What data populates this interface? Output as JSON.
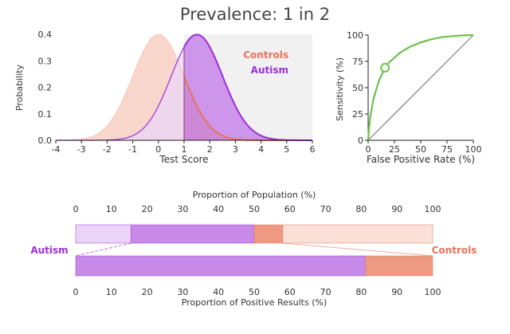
{
  "title": "Prevalence: 1 in 2",
  "colors": {
    "controls": "#e8745a",
    "controls_fill": "#f7c8bb",
    "controls_light": "#fbe0d8",
    "autism": "#9b30d9",
    "autism_fill": "#c88ae8",
    "autism_light": "#ead5f8",
    "roc": "#6cc24a",
    "axis": "#222222"
  },
  "chart_data": [
    {
      "type": "area",
      "title": "",
      "xlabel": "Test Score",
      "ylabel": "Probability",
      "xlim": [
        -4,
        6
      ],
      "ylim": [
        0,
        0.4
      ],
      "x_ticks": [
        "-4",
        "-3",
        "-2",
        "-1",
        "0",
        "1",
        "2",
        "3",
        "4",
        "5",
        "6"
      ],
      "y_ticks": [
        "0.0",
        "0.1",
        "0.2",
        "0.3",
        "0.4"
      ],
      "threshold": 1,
      "legend": "top-right",
      "series": [
        {
          "name": "Controls",
          "distribution": "normal",
          "mean": 0,
          "sd": 1
        },
        {
          "name": "Autism",
          "distribution": "normal",
          "mean": 1.5,
          "sd": 1
        }
      ]
    },
    {
      "type": "line",
      "title": "",
      "xlabel": "False Positive Rate (%)",
      "ylabel": "Sensitivity (%)",
      "xlim": [
        0,
        100
      ],
      "ylim": [
        0,
        100
      ],
      "x_ticks": [
        "0",
        "25",
        "50",
        "75",
        "100"
      ],
      "y_ticks": [
        "0",
        "25",
        "50",
        "75",
        "100"
      ],
      "operating_point": {
        "x": 16,
        "y": 69
      },
      "series": [
        {
          "name": "",
          "x": [
            0,
            1,
            2,
            5,
            10,
            16,
            20,
            30,
            40,
            50,
            60,
            70,
            80,
            90,
            100
          ],
          "y": [
            0,
            13,
            22,
            39,
            56,
            69,
            74,
            83,
            89,
            93,
            96,
            98,
            99,
            99.7,
            100
          ]
        },
        {
          "name": "",
          "x": [
            0,
            100
          ],
          "y": [
            0,
            100
          ]
        }
      ]
    },
    {
      "type": "bar",
      "title": "",
      "xlabel": "Proportion of Population (%)",
      "xlim": [
        0,
        100
      ],
      "x_ticks": [
        "0",
        "10",
        "20",
        "30",
        "40",
        "50",
        "60",
        "70",
        "80",
        "90",
        "100"
      ],
      "labels": {
        "left": "Autism",
        "right": "Controls"
      },
      "segments": [
        {
          "group": "Autism",
          "outcome": "negative",
          "value": 15.5
        },
        {
          "group": "Autism",
          "outcome": "positive",
          "value": 34.5
        },
        {
          "group": "Controls",
          "outcome": "positive",
          "value": 8
        },
        {
          "group": "Controls",
          "outcome": "negative",
          "value": 42
        }
      ]
    },
    {
      "type": "bar",
      "title": "",
      "xlabel": "Proportion of Positive Results (%)",
      "xlim": [
        0,
        100
      ],
      "x_ticks": [
        "0",
        "10",
        "20",
        "30",
        "40",
        "50",
        "60",
        "70",
        "80",
        "90",
        "100"
      ],
      "segments": [
        {
          "group": "Autism",
          "value": 81.2
        },
        {
          "group": "Controls",
          "value": 18.8
        }
      ]
    }
  ]
}
